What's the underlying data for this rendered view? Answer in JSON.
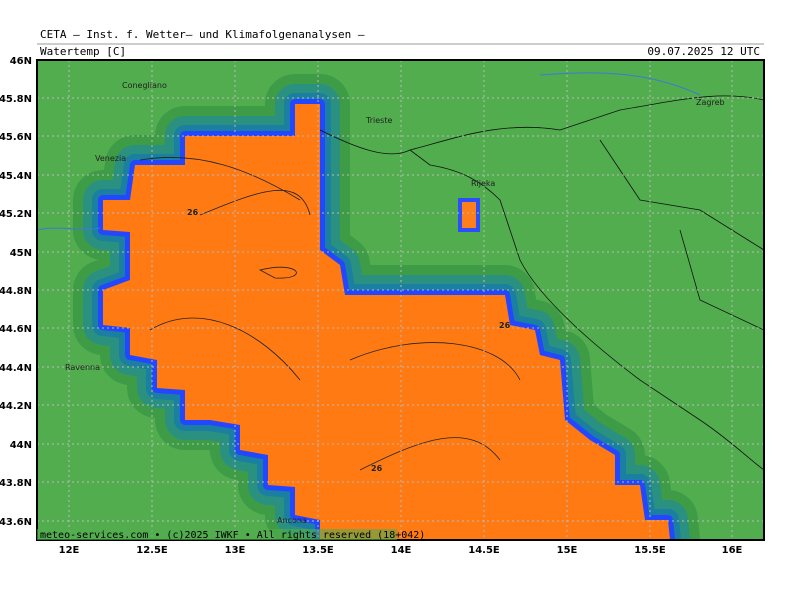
{
  "header": {
    "institute": "CETA — Inst. f. Wetter— und Klimafolgenanalysen —",
    "field": "Watertemp [C]",
    "valid_time": "09.07.2025 12 UTC"
  },
  "footer": "meteo-services.com • (c)2025 IWKF • All rights reserved (18+042)",
  "lat_labels": [
    "46N",
    "45.8N",
    "45.6N",
    "45.4N",
    "45.2N",
    "45N",
    "44.8N",
    "44.6N",
    "44.4N",
    "44.2N",
    "44N",
    "43.8N",
    "43.6N"
  ],
  "lon_labels": [
    "12E",
    "12.5E",
    "13E",
    "13.5E",
    "14E",
    "14.5E",
    "15E",
    "15.5E",
    "16E"
  ],
  "places": [
    "Conegliano",
    "Venezia",
    "Trieste",
    "Rijeka",
    "Zagreb",
    "Ravenna",
    "Ancona"
  ],
  "contour_labels": [
    "26",
    "26",
    "26"
  ]
}
